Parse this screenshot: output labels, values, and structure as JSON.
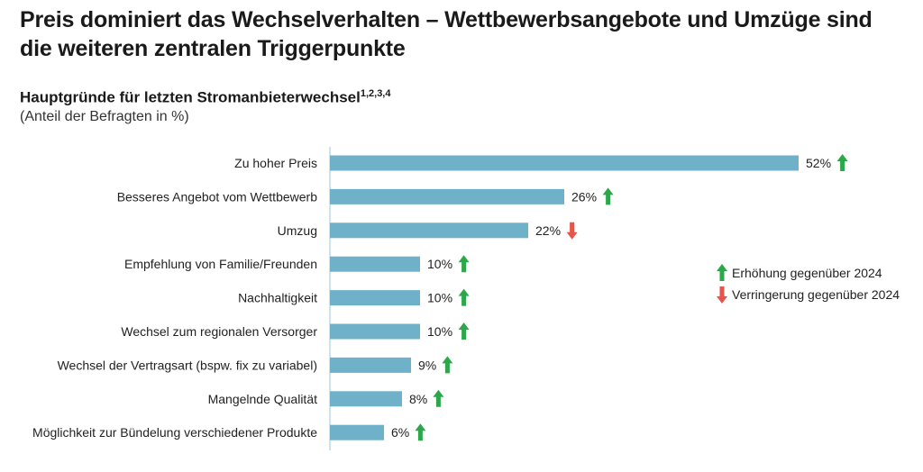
{
  "title": "Preis dominiert das Wechselverhalten – Wettbewerbsangebote und Umzüge sind die weiteren zentralen Triggerpunkte",
  "chart_data": {
    "type": "bar",
    "orientation": "horizontal",
    "title": "Hauptgründe für letzten Stromanbieterwechsel",
    "title_footnotes": "1,2,3,4",
    "subtitle": "(Anteil der Befragten in %)",
    "categories": [
      "Zu hoher Preis",
      "Besseres Angebot vom Wettbewerb",
      "Umzug",
      "Empfehlung von Familie/Freunden",
      "Nachhaltigkeit",
      "Wechsel zum regionalen Versorger",
      "Wechsel der Vertragsart (bspw. fix zu variabel)",
      "Mangelnde Qualität",
      "Möglichkeit zur Bündelung verschiedener Produkte"
    ],
    "values": [
      52,
      26,
      22,
      10,
      10,
      10,
      9,
      8,
      6
    ],
    "value_labels": [
      "52%",
      "26%",
      "22%",
      "10%",
      "10%",
      "10%",
      "9%",
      "8%",
      "6%"
    ],
    "change_vs_2024": [
      "up",
      "up",
      "down",
      "up",
      "up",
      "up",
      "up",
      "up",
      "up"
    ],
    "xlim": [
      0,
      100
    ],
    "grid": false,
    "bar_color": "#6fb1c8",
    "up_color": "#2ca84a",
    "down_color": "#e8534a",
    "legend": {
      "placement": "right",
      "up": "Erhöhung gegenüber 2024",
      "down": "Verringerung gegenüber 2024"
    }
  }
}
